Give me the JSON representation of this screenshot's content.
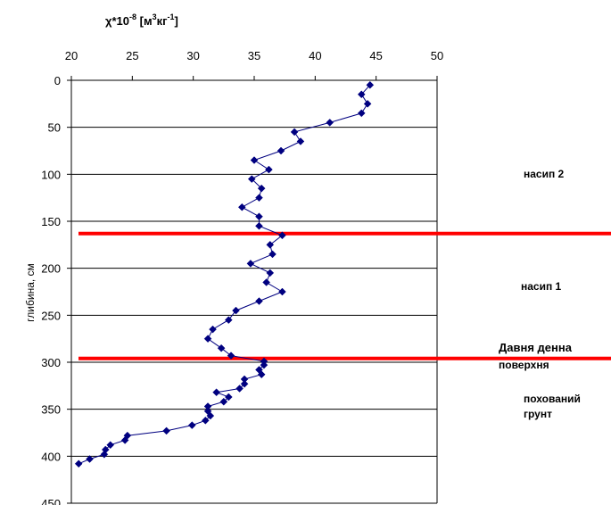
{
  "chart_data": {
    "type": "line",
    "title": {
      "base": "χ*10",
      "exp1": "-8",
      "mid": " [м",
      "exp2": "3",
      "mid2": "кг",
      "exp3": "-1",
      "end": "]"
    },
    "xlabel": "",
    "ylabel": "глибина, см",
    "xlim": [
      20,
      50
    ],
    "ylim": [
      0,
      450
    ],
    "x_ticks": [
      20,
      25,
      30,
      35,
      40,
      45,
      50
    ],
    "y_ticks": [
      0,
      50,
      100,
      150,
      200,
      250,
      300,
      350,
      400,
      450
    ],
    "x_axis_position": "top",
    "y_axis_inverted": true,
    "grid": {
      "horizontal": true,
      "vertical": false
    },
    "series": [
      {
        "color": "#000080",
        "marker": "diamond",
        "points": [
          [
            44.5,
            5
          ],
          [
            43.8,
            15
          ],
          [
            44.3,
            25
          ],
          [
            43.8,
            35
          ],
          [
            41.2,
            45
          ],
          [
            38.3,
            55
          ],
          [
            38.8,
            65
          ],
          [
            37.2,
            75
          ],
          [
            35.0,
            85
          ],
          [
            36.2,
            95
          ],
          [
            34.8,
            105
          ],
          [
            35.6,
            115
          ],
          [
            35.4,
            125
          ],
          [
            34.0,
            135
          ],
          [
            35.4,
            145
          ],
          [
            35.4,
            155
          ],
          [
            37.3,
            165
          ],
          [
            36.3,
            175
          ],
          [
            36.5,
            185
          ],
          [
            34.7,
            195
          ],
          [
            36.3,
            205
          ],
          [
            36.0,
            215
          ],
          [
            37.3,
            225
          ],
          [
            35.4,
            235
          ],
          [
            33.5,
            245
          ],
          [
            32.9,
            255
          ],
          [
            31.6,
            265
          ],
          [
            31.2,
            275
          ],
          [
            32.3,
            285
          ],
          [
            33.1,
            293
          ],
          [
            35.8,
            299
          ],
          [
            35.8,
            303
          ],
          [
            35.4,
            308
          ],
          [
            35.6,
            313
          ],
          [
            34.2,
            318
          ],
          [
            34.2,
            323
          ],
          [
            33.8,
            328
          ],
          [
            31.9,
            332
          ],
          [
            32.9,
            337
          ],
          [
            32.5,
            342
          ],
          [
            31.2,
            347
          ],
          [
            31.2,
            352
          ],
          [
            31.4,
            357
          ],
          [
            31.0,
            362
          ],
          [
            29.9,
            367
          ],
          [
            27.8,
            373
          ],
          [
            24.6,
            378
          ],
          [
            24.4,
            383
          ],
          [
            23.2,
            388
          ],
          [
            22.8,
            393
          ],
          [
            22.7,
            398
          ],
          [
            21.5,
            403
          ],
          [
            20.6,
            408
          ]
        ]
      }
    ],
    "reference_lines": [
      {
        "y": 163,
        "color": "#ff0000"
      },
      {
        "y": 296,
        "color": "#ff0000"
      }
    ],
    "annotations": [
      {
        "id": "nasyp2",
        "text": "насип 2"
      },
      {
        "id": "nasyp1",
        "text": "насип 1"
      },
      {
        "id": "davnia1",
        "text": "Давня денна"
      },
      {
        "id": "davnia2",
        "text": "поверхня"
      },
      {
        "id": "pokh1",
        "text": "похований"
      },
      {
        "id": "pokh2",
        "text": "грунт"
      }
    ]
  }
}
